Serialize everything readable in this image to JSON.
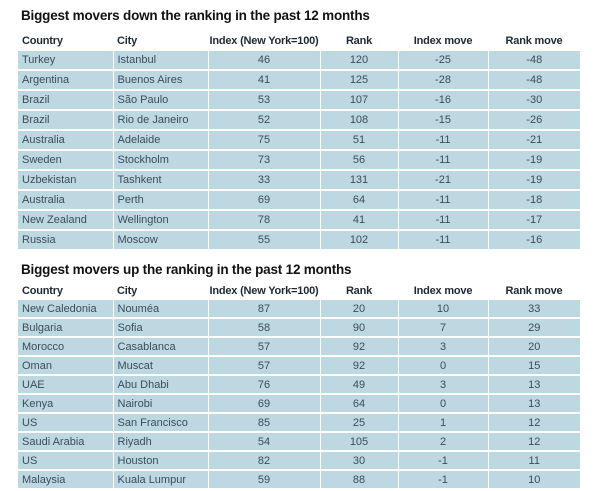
{
  "colors": {
    "page_bg": "#ffffff",
    "row_bg": "#bed8e2",
    "cell_text": "#3c4c58",
    "header_text": "#1e2a33",
    "title_text": "#121212"
  },
  "chart_data": [
    {
      "type": "table",
      "title": "Biggest movers down the ranking in the past 12 months",
      "columns": [
        "Country",
        "City",
        "Index (New York=100)",
        "Rank",
        "Index move",
        "Rank move"
      ],
      "rows": [
        [
          "Turkey",
          "Istanbul",
          46,
          120,
          -25,
          -48
        ],
        [
          "Argentina",
          "Buenos Aires",
          41,
          125,
          -28,
          -48
        ],
        [
          "Brazil",
          "São Paulo",
          53,
          107,
          -16,
          -30
        ],
        [
          "Brazil",
          "Rio de Janeiro",
          52,
          108,
          -15,
          -26
        ],
        [
          "Australia",
          "Adelaide",
          75,
          51,
          -11,
          -21
        ],
        [
          "Sweden",
          "Stockholm",
          73,
          56,
          -11,
          -19
        ],
        [
          "Uzbekistan",
          "Tashkent",
          33,
          131,
          -21,
          -19
        ],
        [
          "Australia",
          "Perth",
          69,
          64,
          -11,
          -18
        ],
        [
          "New Zealand",
          "Wellington",
          78,
          41,
          -11,
          -17
        ],
        [
          "Russia",
          "Moscow",
          55,
          102,
          -11,
          -16
        ]
      ]
    },
    {
      "type": "table",
      "title": "Biggest movers up the ranking in the past 12 months",
      "columns": [
        "Country",
        "City",
        "Index (New York=100)",
        "Rank",
        "Index move",
        "Rank move"
      ],
      "rows": [
        [
          "New Caledonia",
          "Nouméa",
          87,
          20,
          10,
          33
        ],
        [
          "Bulgaria",
          "Sofia",
          58,
          90,
          7,
          29
        ],
        [
          "Morocco",
          "Casablanca",
          57,
          92,
          3,
          20
        ],
        [
          "Oman",
          "Muscat",
          57,
          92,
          0,
          15
        ],
        [
          "UAE",
          "Abu Dhabi",
          76,
          49,
          3,
          13
        ],
        [
          "Kenya",
          "Nairobi",
          69,
          64,
          0,
          13
        ],
        [
          "US",
          "San Francisco",
          85,
          25,
          1,
          12
        ],
        [
          "Saudi Arabia",
          "Riyadh",
          54,
          105,
          2,
          12
        ],
        [
          "US",
          "Houston",
          82,
          30,
          -1,
          11
        ],
        [
          "Malaysia",
          "Kuala Lumpur",
          59,
          88,
          -1,
          10
        ]
      ]
    }
  ]
}
